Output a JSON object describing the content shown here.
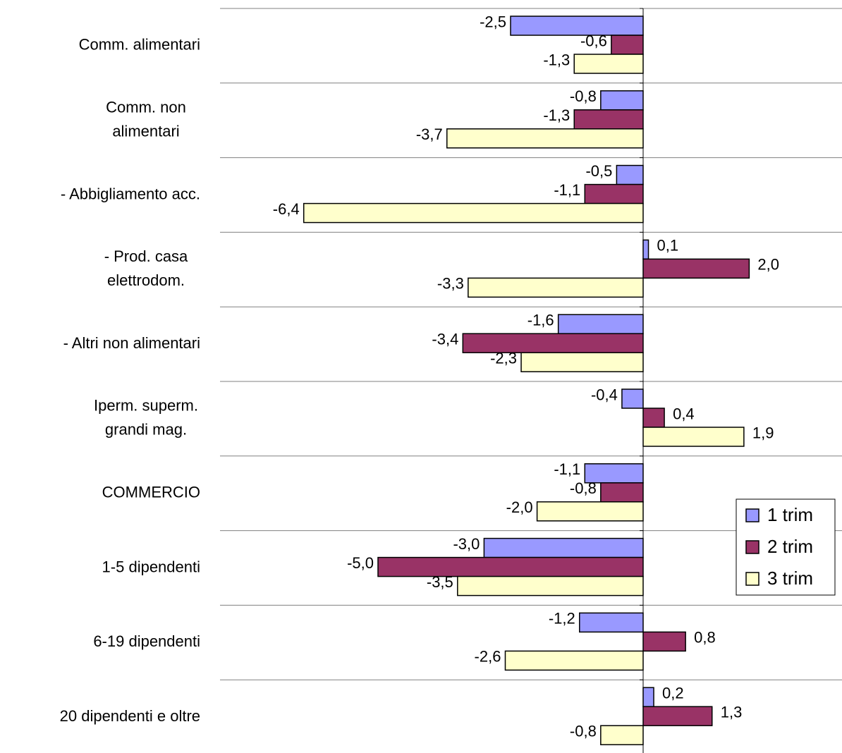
{
  "chart_data": {
    "type": "bar",
    "orientation": "horizontal",
    "categories": [
      [
        "Comm. alimentari"
      ],
      [
        "Comm. non",
        "alimentari"
      ],
      [
        "- Abbigliamento acc."
      ],
      [
        "- Prod. casa",
        "elettrodom."
      ],
      [
        "- Altri  non alimentari"
      ],
      [
        "Iperm. superm.",
        "grandi mag."
      ],
      [
        "COMMERCIO"
      ],
      [
        "1-5 dipendenti"
      ],
      [
        "6-19 dipendenti"
      ],
      [
        "20 dipendenti e oltre"
      ]
    ],
    "series": [
      {
        "name": "1 trim",
        "color": "#9999ff",
        "values": [
          -2.5,
          -0.8,
          -0.5,
          0.1,
          -1.6,
          -0.4,
          -1.1,
          -3.0,
          -1.2,
          0.2
        ],
        "labels": [
          "-2,5",
          "-0,8",
          "-0,5",
          "0,1",
          "-1,6",
          "-0,4",
          "-1,1",
          "-3,0",
          "-1,2",
          "0,2"
        ]
      },
      {
        "name": "2 trim",
        "color": "#993366",
        "values": [
          -0.6,
          -1.3,
          -1.1,
          2.0,
          -3.4,
          0.4,
          -0.8,
          -5.0,
          0.8,
          1.3
        ],
        "labels": [
          "-0,6",
          "-1,3",
          "-1,1",
          "2,0",
          "-3,4",
          "0,4",
          "-0,8",
          "-5,0",
          "0,8",
          "1,3"
        ]
      },
      {
        "name": "3 trim",
        "color": "#ffffcc",
        "values": [
          -1.3,
          -3.7,
          -6.4,
          -3.3,
          -2.3,
          1.9,
          -2.0,
          -3.5,
          -2.6,
          -0.8
        ],
        "labels": [
          "-1,3",
          "-3,7",
          "-6,4",
          "-3,3",
          "-2,3",
          "1,9",
          "-2,0",
          "-3,5",
          "-2,6",
          "-0,8"
        ]
      }
    ],
    "legend_position": "right",
    "gridlines": "horizontal category separators"
  }
}
